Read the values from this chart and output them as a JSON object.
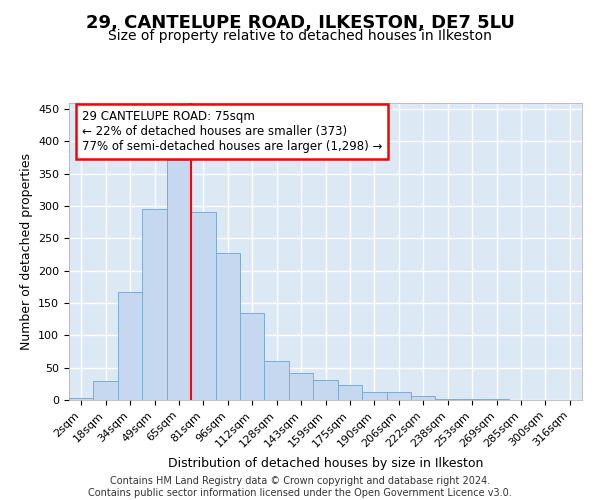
{
  "title1": "29, CANTELUPE ROAD, ILKESTON, DE7 5LU",
  "title2": "Size of property relative to detached houses in Ilkeston",
  "xlabel": "Distribution of detached houses by size in Ilkeston",
  "ylabel": "Number of detached properties",
  "bin_labels": [
    "2sqm",
    "18sqm",
    "34sqm",
    "49sqm",
    "65sqm",
    "81sqm",
    "96sqm",
    "112sqm",
    "128sqm",
    "143sqm",
    "159sqm",
    "175sqm",
    "190sqm",
    "206sqm",
    "222sqm",
    "238sqm",
    "253sqm",
    "269sqm",
    "285sqm",
    "300sqm",
    "316sqm"
  ],
  "bar_heights": [
    3,
    29,
    167,
    296,
    371,
    290,
    228,
    135,
    61,
    42,
    31,
    23,
    12,
    13,
    6,
    2,
    1,
    1,
    0,
    0,
    0
  ],
  "bar_color": "#c5d8f0",
  "bar_edge_color": "#7aadd4",
  "annotation_text": "29 CANTELUPE ROAD: 75sqm\n← 22% of detached houses are smaller (373)\n77% of semi-detached houses are larger (1,298) →",
  "annotation_box_color": "white",
  "annotation_box_edge_color": "red",
  "footer_text": "Contains HM Land Registry data © Crown copyright and database right 2024.\nContains public sector information licensed under the Open Government Licence v3.0.",
  "ylim": [
    0,
    460
  ],
  "yticks": [
    0,
    50,
    100,
    150,
    200,
    250,
    300,
    350,
    400,
    450
  ],
  "background_color": "#dde8f5",
  "grid_color": "white",
  "title1_fontsize": 13,
  "title2_fontsize": 10,
  "xlabel_fontsize": 9,
  "ylabel_fontsize": 9,
  "tick_fontsize": 8,
  "annotation_fontsize": 8.5,
  "footer_fontsize": 7,
  "vline_pos": 4.5
}
